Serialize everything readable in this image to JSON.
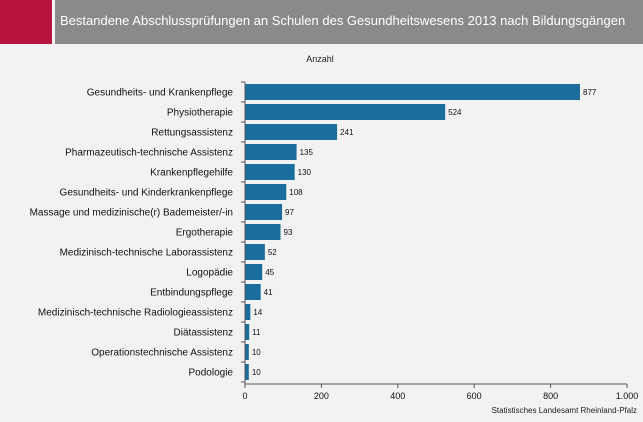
{
  "header": {
    "title": "Bestandene Abschlussprüfungen an Schulen des Gesundheitswesens 2013 nach Bildungsgängen",
    "accent_color": "#b5123e",
    "bar_color": "#8a8a8a"
  },
  "source": "Statistisches Landesamt Rheinland-Pfalz",
  "chart_data": {
    "type": "bar",
    "orientation": "horizontal",
    "title": "",
    "xlabel": "Anzahl",
    "ylabel": "",
    "categories": [
      "Gesundheits- und Krankenpflege",
      "Physiotherapie",
      "Rettungsassistenz",
      "Pharmazeutisch-technische Assistenz",
      "Krankenpflegehilfe",
      "Gesundheits- und Kinderkrankenpflege",
      "Massage und medizinische(r) Bademeister/-in",
      "Ergotherapie",
      "Medizinisch-technische Laborassistenz",
      "Logopädie",
      "Entbindungspflege",
      "Medizinisch-technische Radiologieassistenz",
      "Diätassistenz",
      "Operationstechnische Assistenz",
      "Podologie"
    ],
    "values": [
      877,
      524,
      241,
      135,
      130,
      108,
      97,
      93,
      52,
      45,
      41,
      14,
      11,
      10,
      10
    ],
    "xlim": [
      0,
      1000
    ],
    "xticks": [
      0,
      200,
      400,
      600,
      800,
      1000
    ],
    "xtick_labels": [
      "0",
      "200",
      "400",
      "600",
      "800",
      "1.000"
    ],
    "bar_color": "#1a6e9e",
    "grid": false,
    "legend": "none"
  }
}
